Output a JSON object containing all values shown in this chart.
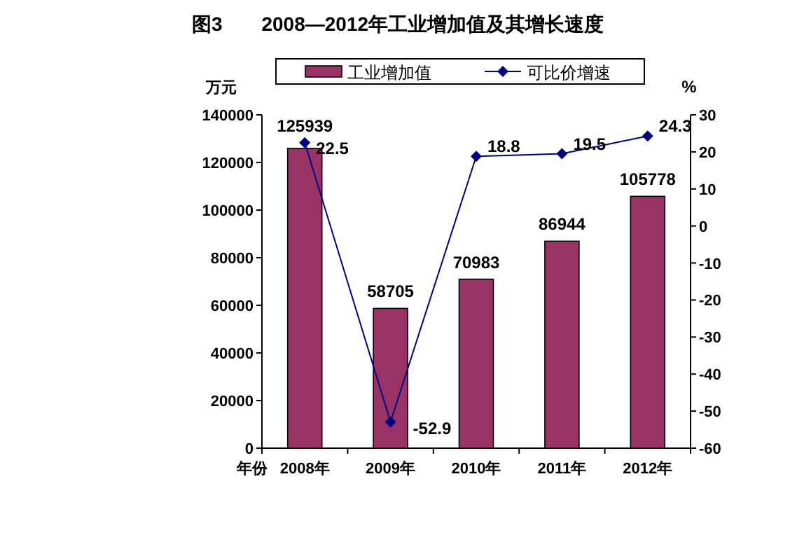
{
  "chart_data": {
    "type": "bar",
    "title": "图3　　2008—2012年工业增加值及其增长速度",
    "ylabel": "万元",
    "y2label": "%",
    "xlabel": "年份",
    "categories": [
      "2008年",
      "2009年",
      "2010年",
      "2011年",
      "2012年"
    ],
    "series": [
      {
        "name": "工业增加值",
        "color": "#993366",
        "values": [
          125939,
          58705,
          70983,
          86944,
          105778
        ]
      },
      {
        "name": "可比价增速",
        "type": "line",
        "axis": "y2",
        "color": "#000080",
        "marker": "diamond",
        "values": [
          22.5,
          -52.9,
          18.8,
          19.5,
          24.3
        ]
      }
    ],
    "ylim": [
      0,
      140000
    ],
    "yticks": [
      0,
      20000,
      40000,
      60000,
      80000,
      100000,
      120000,
      140000
    ],
    "y2lim": [
      -60,
      30
    ],
    "y2ticks": [
      -60,
      -50,
      -40,
      -30,
      -20,
      -10,
      0,
      10,
      20,
      30
    ],
    "data_labels": true,
    "legend": "top"
  }
}
